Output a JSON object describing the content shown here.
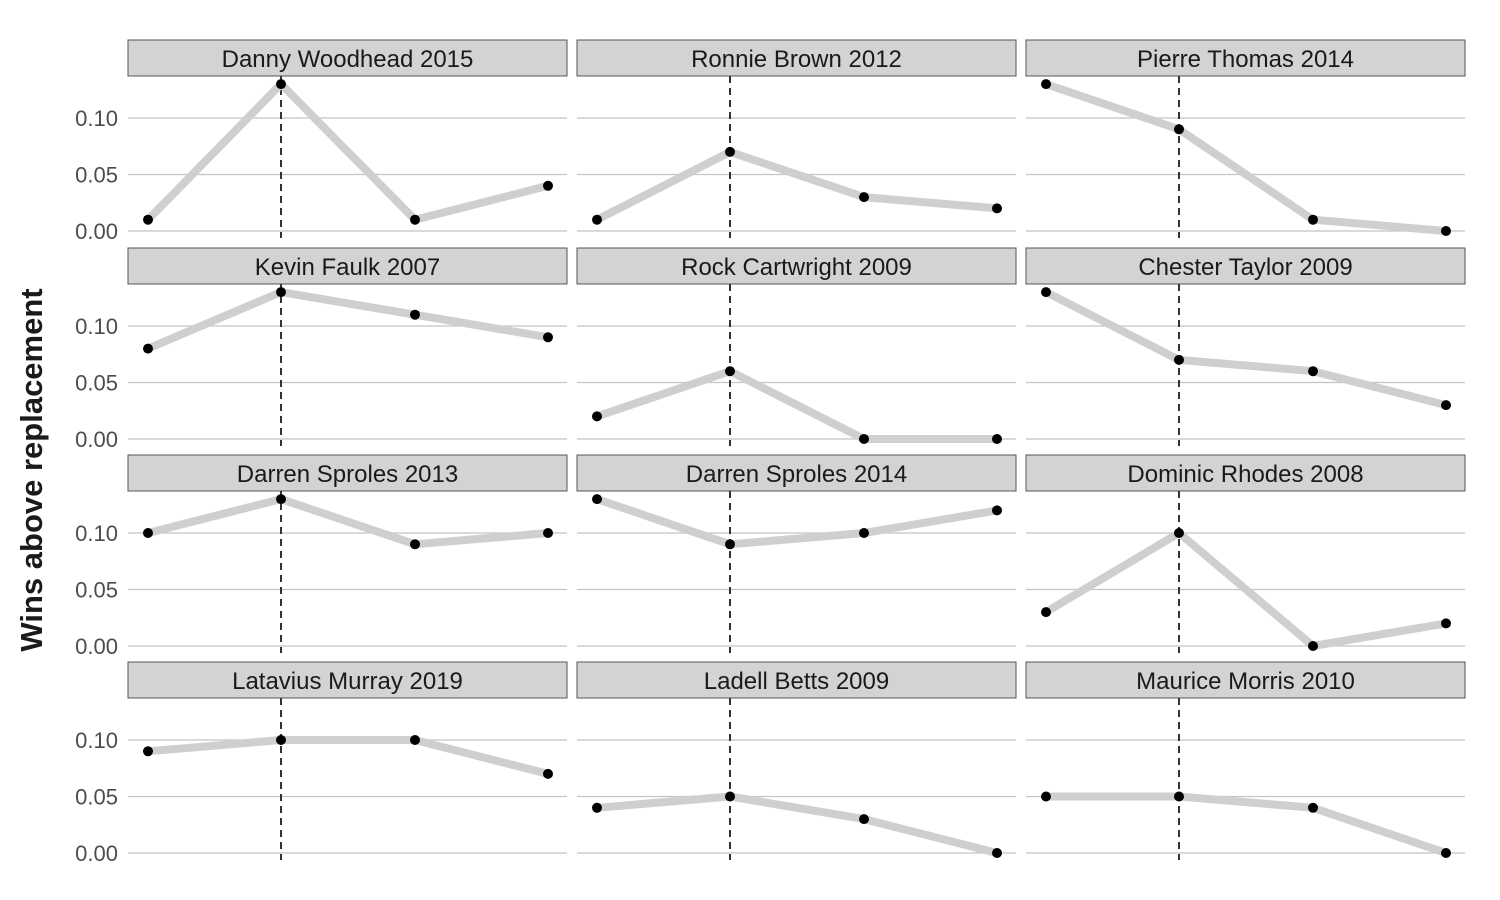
{
  "chart_data": {
    "type": "line",
    "ylabel": "Wins above replacement",
    "xlabel": "",
    "ylim": [
      0,
      0.13
    ],
    "yticks": [
      "0.00",
      "0.05",
      "0.10"
    ],
    "ytick_values": [
      0,
      0.05,
      0.1
    ],
    "grid": "horizontal",
    "reference_line": "dashed vertical line at the 2nd point",
    "facets": [
      {
        "title": "Danny Woodhead 2015",
        "values": [
          0.01,
          0.13,
          0.01,
          0.04
        ]
      },
      {
        "title": "Ronnie Brown 2012",
        "values": [
          0.01,
          0.07,
          0.03,
          0.02
        ]
      },
      {
        "title": "Pierre Thomas 2014",
        "values": [
          0.13,
          0.09,
          0.01,
          0.0
        ]
      },
      {
        "title": "Kevin Faulk 2007",
        "values": [
          0.08,
          0.13,
          0.11,
          0.09
        ]
      },
      {
        "title": "Rock Cartwright 2009",
        "values": [
          0.02,
          0.06,
          0.0,
          0.0
        ]
      },
      {
        "title": "Chester Taylor 2009",
        "values": [
          0.13,
          0.07,
          0.06,
          0.03
        ]
      },
      {
        "title": "Darren Sproles 2013",
        "values": [
          0.1,
          0.13,
          0.09,
          0.1
        ]
      },
      {
        "title": "Darren Sproles 2014",
        "values": [
          0.13,
          0.09,
          0.1,
          0.12
        ]
      },
      {
        "title": "Dominic Rhodes 2008",
        "values": [
          0.03,
          0.1,
          0.0,
          0.02
        ]
      },
      {
        "title": "Latavius Murray 2019",
        "values": [
          0.09,
          0.1,
          0.1,
          0.07
        ]
      },
      {
        "title": "Ladell Betts 2009",
        "values": [
          0.04,
          0.05,
          0.03,
          0.0
        ]
      },
      {
        "title": "Maurice Morris 2010",
        "values": [
          0.05,
          0.05,
          0.04,
          0.0
        ]
      }
    ]
  }
}
